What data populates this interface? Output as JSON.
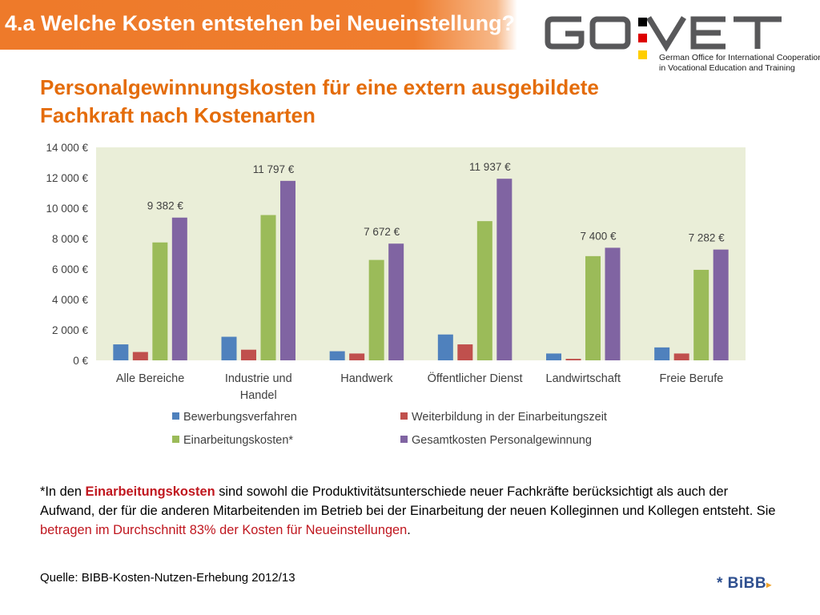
{
  "header": {
    "title": "4.a Welche Kosten entstehen bei Neueinstellung?"
  },
  "logo": {
    "text": "GO:VET",
    "subtitle_line1": "German Office for International Cooperation",
    "subtitle_line2": "in Vocational Education and Training",
    "flag_colors": [
      "#000000",
      "#dd0000",
      "#ffce00"
    ]
  },
  "slide": {
    "subtitle_line1": "Personalgewinnungskosten für eine extern ausgebildete",
    "subtitle_line2": "Fachkraft nach Kostenarten"
  },
  "chart_data": {
    "type": "bar",
    "categories": [
      "Alle Bereiche",
      [
        "Industrie und",
        "Handel"
      ],
      "Handwerk",
      "Öffentlicher Dienst",
      "Landwirtschaft",
      "Freie Berufe"
    ],
    "series": [
      {
        "name": "Bewerbungsverfahren",
        "color": "#4f81bd",
        "values": [
          1050,
          1550,
          600,
          1700,
          450,
          850
        ]
      },
      {
        "name": "Weiterbildung in der Einarbeitungszeit",
        "color": "#c0504d",
        "values": [
          550,
          700,
          450,
          1050,
          100,
          450
        ]
      },
      {
        "name": "Einarbeitungskosten*",
        "color": "#9bbb59",
        "values": [
          7750,
          9550,
          6600,
          9150,
          6850,
          5950
        ]
      },
      {
        "name": "Gesamtkosten Personalgewinnung",
        "color": "#8064a2",
        "values": [
          9382,
          11797,
          7672,
          11937,
          7400,
          7282
        ]
      }
    ],
    "data_labels": [
      "9 382 €",
      "11 797 €",
      "7 672 €",
      "11 937 €",
      "7 400 €",
      "7 282 €"
    ],
    "y_ticks": [
      "0 €",
      "2 000 €",
      "4 000 €",
      "6 000 €",
      "8 000 €",
      "10 000 €",
      "12 000 €",
      "14 000 €"
    ],
    "ylim": [
      0,
      14000
    ],
    "plot_background": "#eaeed8",
    "legend_position": "bottom"
  },
  "footnote": {
    "part1": "*In den ",
    "highlight1": "Einarbeitungskosten",
    "part2": " sind sowohl die Produktivitätsunterschiede neuer Fachkräfte berücksichtigt als auch der Aufwand, der für die anderen Mitarbeitenden im Betrieb bei der Einarbeitung der neuen Kolleginnen und Kollegen entsteht. Sie ",
    "highlight2": "betragen im Durchschnitt 83% der Kosten für Neueinstellungen",
    "part3": "."
  },
  "source": "Quelle: BIBB-Kosten-Nutzen-Erhebung 2012/13",
  "bibb_logo": "* BiBB"
}
